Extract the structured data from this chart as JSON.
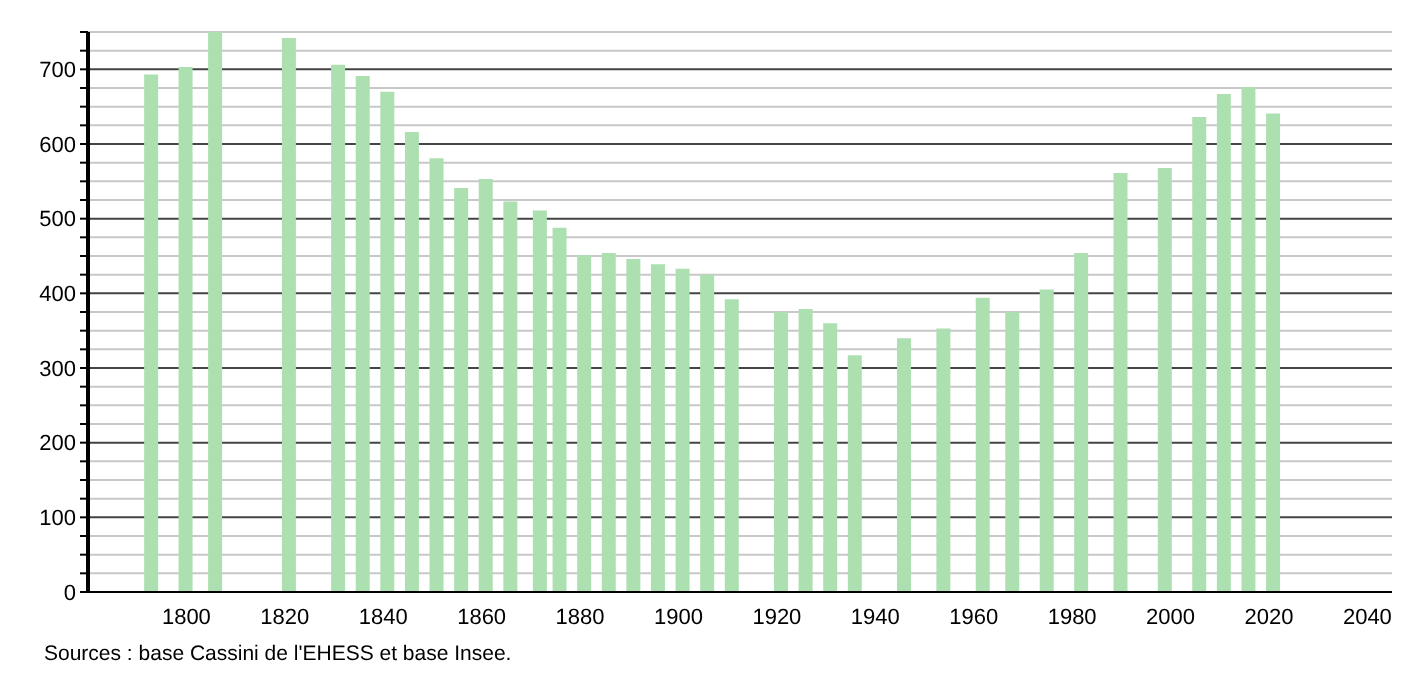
{
  "chart_data": {
    "type": "bar",
    "x": [
      1793,
      1800,
      1806,
      1821,
      1831,
      1836,
      1841,
      1846,
      1851,
      1856,
      1861,
      1866,
      1872,
      1876,
      1881,
      1886,
      1891,
      1896,
      1901,
      1906,
      1911,
      1921,
      1926,
      1931,
      1936,
      1946,
      1954,
      1962,
      1968,
      1975,
      1982,
      1990,
      1999,
      2006,
      2011,
      2016,
      2021
    ],
    "values": [
      693,
      703,
      750,
      742,
      706,
      691,
      670,
      616,
      581,
      541,
      553,
      523,
      511,
      488,
      451,
      454,
      446,
      439,
      433,
      425,
      392,
      375,
      379,
      360,
      317,
      340,
      353,
      394,
      375,
      405,
      454,
      561,
      568,
      636,
      667,
      676,
      641
    ],
    "color": "#ade0b1",
    "xlim": [
      1780,
      2045
    ],
    "xticks": [
      1800,
      1820,
      1840,
      1860,
      1880,
      1900,
      1920,
      1940,
      1960,
      1980,
      2000,
      2020,
      2040
    ],
    "ylim": [
      0,
      750
    ],
    "yticks": [
      0,
      {
        "value": 25,
        "label": null
      },
      {
        "value": 50,
        "label": null
      },
      {
        "value": 75,
        "label": null
      },
      100,
      {
        "value": 125,
        "label": null
      },
      {
        "value": 150,
        "label": null
      },
      {
        "value": 175,
        "label": null
      },
      200,
      {
        "value": 225,
        "label": null
      },
      {
        "value": 250,
        "label": null
      },
      {
        "value": 275,
        "label": null
      },
      300,
      {
        "value": 325,
        "label": null
      },
      {
        "value": 350,
        "label": null
      },
      {
        "value": 375,
        "label": null
      },
      400,
      {
        "value": 425,
        "label": null
      },
      {
        "value": 450,
        "label": null
      },
      {
        "value": 475,
        "label": null
      },
      500,
      {
        "value": 525,
        "label": null
      },
      {
        "value": 550,
        "label": null
      },
      {
        "value": 575,
        "label": null
      },
      600,
      {
        "value": 625,
        "label": null
      },
      {
        "value": 650,
        "label": null
      },
      {
        "value": 675,
        "label": null
      },
      700,
      {
        "value": 725,
        "label": null
      },
      {
        "value": 750,
        "label": null
      }
    ],
    "grid": "y",
    "annotations": [
      "Sources : base Cassini de l'EHESS et base Insee."
    ]
  }
}
